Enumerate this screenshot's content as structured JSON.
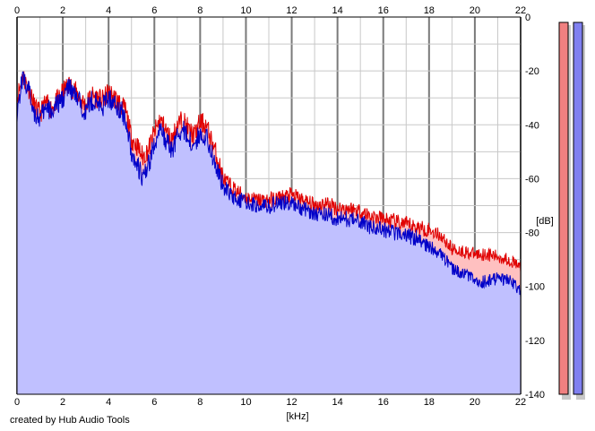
{
  "credit": "created by Hub Audio Tools",
  "colors": {
    "left_channel": "#e00000",
    "right_channel": "#0000c8",
    "fill": "#c0c0ff",
    "fill_left": "#ffc0c0",
    "grid": "#c8c8c8",
    "major_grid": "#7a7a7a",
    "meter_left": "#f08080",
    "meter_right": "#8080f0"
  },
  "chart_data": {
    "type": "area",
    "title": "",
    "xlabel": "[kHz]",
    "ylabel": "[dB]",
    "xlim": [
      0,
      22
    ],
    "ylim": [
      -140,
      0
    ],
    "x_ticks": [
      0,
      2,
      4,
      6,
      8,
      10,
      12,
      14,
      16,
      18,
      20,
      22
    ],
    "y_ticks": [
      0,
      -20,
      -40,
      -60,
      -80,
      -100,
      -120,
      -140
    ],
    "x_ticks_top_and_bottom": true,
    "y_ticks_side": "right",
    "grid": true,
    "legend": "none",
    "series": [
      {
        "color": "#e00000",
        "x": [
          0,
          0.25,
          0.5,
          0.75,
          1,
          1.25,
          1.5,
          1.75,
          2,
          2.25,
          2.5,
          2.75,
          3,
          3.25,
          3.5,
          3.75,
          4,
          4.25,
          4.5,
          4.75,
          5,
          5.25,
          5.5,
          5.75,
          6,
          6.25,
          6.5,
          6.75,
          7,
          7.25,
          7.5,
          7.75,
          8,
          8.25,
          8.5,
          8.75,
          9,
          9.5,
          10,
          10.5,
          11,
          11.5,
          12,
          12.5,
          13,
          13.5,
          14,
          14.5,
          15,
          15.5,
          16,
          16.5,
          17,
          17.5,
          18,
          18.5,
          19,
          19.5,
          20,
          20.5,
          21,
          21.5,
          22
        ],
        "values": [
          -30,
          -22,
          -26,
          -33,
          -36,
          -32,
          -34,
          -31,
          -28,
          -25,
          -27,
          -30,
          -33,
          -29,
          -30,
          -31,
          -28,
          -30,
          -32,
          -35,
          -45,
          -48,
          -52,
          -49,
          -43,
          -38,
          -42,
          -46,
          -40,
          -38,
          -42,
          -44,
          -39,
          -40,
          -46,
          -52,
          -60,
          -64,
          -67,
          -68,
          -68,
          -67,
          -66,
          -68,
          -70,
          -69,
          -71,
          -71,
          -72,
          -74,
          -75,
          -76,
          -77,
          -78,
          -79,
          -81,
          -86,
          -87,
          -88,
          -88,
          -89,
          -90,
          -93
        ]
      },
      {
        "color": "#0000c8",
        "x": [
          0,
          0.25,
          0.5,
          0.75,
          1,
          1.25,
          1.5,
          1.75,
          2,
          2.25,
          2.5,
          2.75,
          3,
          3.25,
          3.5,
          3.75,
          4,
          4.25,
          4.5,
          4.75,
          5,
          5.25,
          5.5,
          5.75,
          6,
          6.25,
          6.5,
          6.75,
          7,
          7.25,
          7.5,
          7.75,
          8,
          8.25,
          8.5,
          8.75,
          9,
          9.5,
          10,
          10.5,
          11,
          11.5,
          12,
          12.5,
          13,
          13.5,
          14,
          14.5,
          15,
          15.5,
          16,
          16.5,
          17,
          17.5,
          18,
          18.5,
          19,
          19.5,
          20,
          20.5,
          21,
          21.5,
          22
        ],
        "values": [
          -35,
          -22,
          -27,
          -35,
          -38,
          -34,
          -35,
          -33,
          -30,
          -26,
          -29,
          -32,
          -35,
          -31,
          -32,
          -33,
          -30,
          -32,
          -34,
          -38,
          -50,
          -55,
          -60,
          -55,
          -47,
          -42,
          -46,
          -50,
          -44,
          -42,
          -45,
          -48,
          -43,
          -44,
          -50,
          -57,
          -63,
          -67,
          -69,
          -70,
          -70,
          -69,
          -69,
          -71,
          -73,
          -73,
          -75,
          -75,
          -76,
          -78,
          -79,
          -80,
          -81,
          -82,
          -85,
          -88,
          -93,
          -95,
          -98,
          -98,
          -97,
          -98,
          -102
        ]
      }
    ],
    "level_meters": [
      {
        "color": "#f08080",
        "level_db": 0
      },
      {
        "color": "#8080f0",
        "level_db": 0
      }
    ]
  }
}
